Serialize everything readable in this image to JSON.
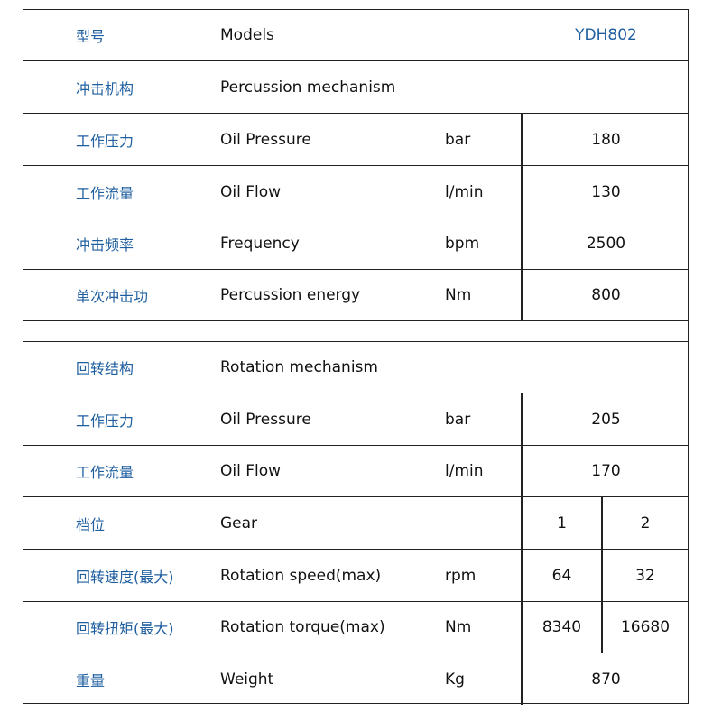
{
  "colors": {
    "label_blue": "#1f5fa0",
    "border": "#222222"
  },
  "rows": [
    {
      "cn": "型号",
      "en": "Models",
      "model": "YDH802"
    },
    {
      "cn": "冲击机构",
      "en": "Percussion mechanism",
      "section": true
    },
    {
      "cn": "工作压力",
      "en": "Oil Pressure",
      "unit": "bar",
      "value": "180"
    },
    {
      "cn": "工作流量",
      "en": "Oil Flow",
      "unit": "l/min",
      "value": "130"
    },
    {
      "cn": "冲击频率",
      "en": "Frequency",
      "unit": "bpm",
      "value": "2500"
    },
    {
      "cn": "单次冲击功",
      "en": "Percussion energy",
      "unit": "Nm",
      "value": "800"
    },
    {
      "blank": true
    },
    {
      "cn": "回转结构",
      "en": "Rotation mechanism",
      "section": true
    },
    {
      "cn": "工作压力",
      "en": "Oil Pressure",
      "unit": "bar",
      "value": "205"
    },
    {
      "cn": "工作流量",
      "en": "Oil Flow",
      "unit": "l/min",
      "value": "170"
    },
    {
      "cn": "档位",
      "en": "Gear",
      "unit": "",
      "values": [
        "1",
        "2"
      ]
    },
    {
      "cn": "回转速度(最大)",
      "en": "Rotation speed(max)",
      "unit": "rpm",
      "values": [
        "64",
        "32"
      ]
    },
    {
      "cn": "回转扭矩(最大)",
      "en": "Rotation torque(max)",
      "unit": "Nm",
      "values": [
        "8340",
        "16680"
      ]
    },
    {
      "cn": "重量",
      "en": "Weight",
      "unit": "Kg",
      "value": "870"
    }
  ]
}
